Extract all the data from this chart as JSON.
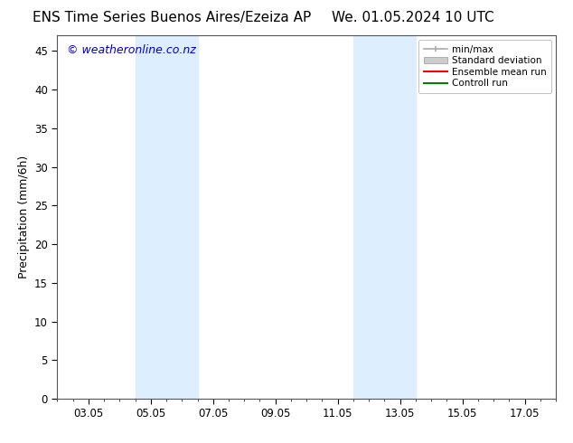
{
  "title_left": "ENS Time Series Buenos Aires/Ezeiza AP",
  "title_right": "We. 01.05.2024 10 UTC",
  "ylabel": "Precipitation (mm/6h)",
  "watermark": "© weatheronline.co.nz",
  "background_color": "#ffffff",
  "plot_bg_color": "#ffffff",
  "x_tick_labels": [
    "03.05",
    "05.05",
    "07.05",
    "09.05",
    "11.05",
    "13.05",
    "15.05",
    "17.05"
  ],
  "x_tick_positions": [
    2,
    4,
    6,
    8,
    10,
    12,
    14,
    16
  ],
  "x_min": 1,
  "x_max": 17,
  "y_min": 0,
  "y_max": 47,
  "y_ticks": [
    0,
    5,
    10,
    15,
    20,
    25,
    30,
    35,
    40,
    45
  ],
  "shaded_regions": [
    {
      "x_start": 3.5,
      "x_end": 5.5,
      "color": "#ddeeff"
    },
    {
      "x_start": 10.5,
      "x_end": 12.5,
      "color": "#ddeeff"
    }
  ],
  "legend_entries": [
    {
      "label": "min/max",
      "color": "#aaaaaa",
      "lw": 1.2
    },
    {
      "label": "Standard deviation",
      "color": "#cccccc",
      "lw": 6
    },
    {
      "label": "Ensemble mean run",
      "color": "#ff0000",
      "lw": 1.5
    },
    {
      "label": "Controll run",
      "color": "#008000",
      "lw": 1.5
    }
  ],
  "title_fontsize": 11,
  "axis_fontsize": 9,
  "tick_fontsize": 8.5,
  "watermark_color": "#0000cc",
  "watermark_fontsize": 9
}
